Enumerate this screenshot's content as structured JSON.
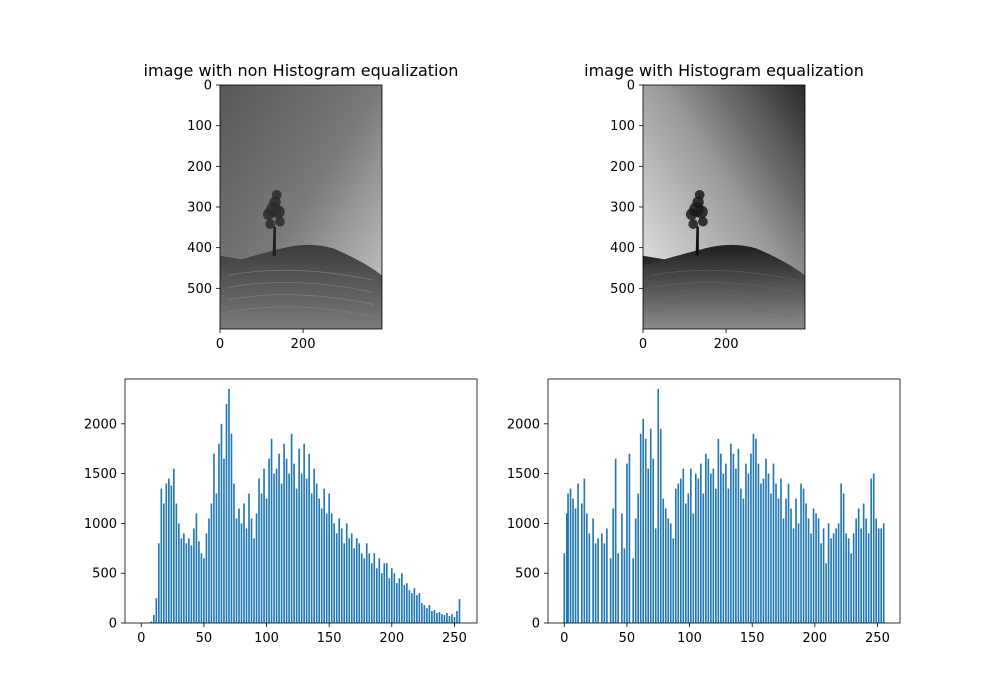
{
  "chart_data": [
    {
      "type": "image",
      "title": "image with non Histogram equalization",
      "image_size": [
        390,
        600
      ],
      "xlim": [
        0,
        390
      ],
      "ylim": [
        600,
        0
      ],
      "xticks": [
        0,
        200
      ],
      "yticks": [
        0,
        100,
        200,
        300,
        400,
        500
      ],
      "content": "grayscale photo of a lone tree on a hill under a gradient sky",
      "tone": "low-contrast"
    },
    {
      "type": "image",
      "title": "image with Histogram equalization",
      "image_size": [
        390,
        600
      ],
      "xlim": [
        0,
        390
      ],
      "ylim": [
        600,
        0
      ],
      "xticks": [
        0,
        200
      ],
      "yticks": [
        0,
        100,
        200,
        300,
        400,
        500
      ],
      "content": "grayscale photo of a lone tree on a hill under a gradient sky",
      "tone": "high-contrast"
    },
    {
      "type": "bar",
      "title": "",
      "xlabel": "",
      "ylabel": "",
      "xlim": [
        -13,
        268
      ],
      "ylim": [
        0,
        2450
      ],
      "xticks": [
        0,
        50,
        100,
        150,
        200,
        250
      ],
      "yticks": [
        0,
        500,
        1000,
        1500,
        2000
      ],
      "color": "#1f77b4",
      "bins": [
        [
          5,
          5
        ],
        [
          8,
          15
        ],
        [
          10,
          80
        ],
        [
          12,
          250
        ],
        [
          14,
          800
        ],
        [
          16,
          1350
        ],
        [
          18,
          1200
        ],
        [
          20,
          1400
        ],
        [
          22,
          1450
        ],
        [
          24,
          1380
        ],
        [
          26,
          1550
        ],
        [
          28,
          1200
        ],
        [
          30,
          1000
        ],
        [
          32,
          850
        ],
        [
          34,
          900
        ],
        [
          36,
          800
        ],
        [
          38,
          850
        ],
        [
          40,
          780
        ],
        [
          42,
          950
        ],
        [
          44,
          1100
        ],
        [
          46,
          820
        ],
        [
          48,
          700
        ],
        [
          50,
          650
        ],
        [
          52,
          900
        ],
        [
          54,
          1050
        ],
        [
          56,
          1200
        ],
        [
          58,
          1700
        ],
        [
          60,
          1300
        ],
        [
          62,
          1800
        ],
        [
          64,
          2000
        ],
        [
          66,
          1650
        ],
        [
          68,
          2200
        ],
        [
          70,
          2350
        ],
        [
          72,
          1900
        ],
        [
          74,
          1400
        ],
        [
          76,
          1050
        ],
        [
          78,
          1150
        ],
        [
          80,
          1000
        ],
        [
          82,
          1200
        ],
        [
          84,
          950
        ],
        [
          86,
          1300
        ],
        [
          88,
          1050
        ],
        [
          90,
          850
        ],
        [
          92,
          1100
        ],
        [
          94,
          1450
        ],
        [
          96,
          1300
        ],
        [
          98,
          1550
        ],
        [
          100,
          1250
        ],
        [
          102,
          1650
        ],
        [
          104,
          1850
        ],
        [
          106,
          1500
        ],
        [
          108,
          1550
        ],
        [
          110,
          1700
        ],
        [
          112,
          1400
        ],
        [
          114,
          1800
        ],
        [
          116,
          1650
        ],
        [
          118,
          1500
        ],
        [
          120,
          1900
        ],
        [
          122,
          1600
        ],
        [
          124,
          1350
        ],
        [
          126,
          1750
        ],
        [
          128,
          1500
        ],
        [
          130,
          1800
        ],
        [
          132,
          1450
        ],
        [
          134,
          1700
        ],
        [
          136,
          1300
        ],
        [
          138,
          1550
        ],
        [
          140,
          1400
        ],
        [
          142,
          1250
        ],
        [
          144,
          1150
        ],
        [
          146,
          1350
        ],
        [
          148,
          1100
        ],
        [
          150,
          1300
        ],
        [
          152,
          1100
        ],
        [
          154,
          1000
        ],
        [
          156,
          900
        ],
        [
          158,
          1050
        ],
        [
          160,
          950
        ],
        [
          162,
          800
        ],
        [
          164,
          1000
        ],
        [
          166,
          850
        ],
        [
          168,
          900
        ],
        [
          170,
          750
        ],
        [
          172,
          850
        ],
        [
          174,
          800
        ],
        [
          176,
          700
        ],
        [
          178,
          650
        ],
        [
          180,
          800
        ],
        [
          182,
          700
        ],
        [
          184,
          600
        ],
        [
          186,
          700
        ],
        [
          188,
          550
        ],
        [
          190,
          650
        ],
        [
          192,
          500
        ],
        [
          194,
          600
        ],
        [
          196,
          600
        ],
        [
          198,
          450
        ],
        [
          200,
          550
        ],
        [
          202,
          500
        ],
        [
          204,
          400
        ],
        [
          206,
          450
        ],
        [
          208,
          500
        ],
        [
          210,
          380
        ],
        [
          212,
          400
        ],
        [
          214,
          330
        ],
        [
          216,
          300
        ],
        [
          218,
          350
        ],
        [
          220,
          280
        ],
        [
          222,
          300
        ],
        [
          224,
          200
        ],
        [
          226,
          180
        ],
        [
          228,
          150
        ],
        [
          230,
          180
        ],
        [
          232,
          120
        ],
        [
          234,
          130
        ],
        [
          236,
          100
        ],
        [
          238,
          110
        ],
        [
          240,
          90
        ],
        [
          242,
          80
        ],
        [
          244,
          100
        ],
        [
          246,
          70
        ],
        [
          248,
          90
        ],
        [
          250,
          60
        ],
        [
          252,
          120
        ],
        [
          254,
          240
        ]
      ]
    },
    {
      "type": "bar",
      "title": "",
      "xlabel": "",
      "ylabel": "",
      "xlim": [
        -13,
        268
      ],
      "ylim": [
        0,
        2450
      ],
      "xticks": [
        0,
        50,
        100,
        150,
        200,
        250
      ],
      "yticks": [
        0,
        500,
        1000,
        1500,
        2000
      ],
      "color": "#1f77b4",
      "bins": [
        [
          0,
          700
        ],
        [
          2,
          1100
        ],
        [
          3,
          1300
        ],
        [
          5,
          1350
        ],
        [
          7,
          1250
        ],
        [
          9,
          1150
        ],
        [
          11,
          1400
        ],
        [
          14,
          1200
        ],
        [
          16,
          1450
        ],
        [
          18,
          1100
        ],
        [
          20,
          900
        ],
        [
          23,
          1050
        ],
        [
          25,
          800
        ],
        [
          27,
          850
        ],
        [
          30,
          900
        ],
        [
          32,
          800
        ],
        [
          34,
          950
        ],
        [
          37,
          650
        ],
        [
          39,
          1150
        ],
        [
          41,
          1650
        ],
        [
          43,
          700
        ],
        [
          46,
          1100
        ],
        [
          48,
          750
        ],
        [
          50,
          1600
        ],
        [
          52,
          1700
        ],
        [
          55,
          650
        ],
        [
          57,
          1050
        ],
        [
          59,
          1300
        ],
        [
          61,
          1900
        ],
        [
          63,
          2050
        ],
        [
          65,
          1850
        ],
        [
          67,
          1550
        ],
        [
          69,
          1950
        ],
        [
          71,
          1650
        ],
        [
          73,
          950
        ],
        [
          75,
          2350
        ],
        [
          77,
          1950
        ],
        [
          79,
          1250
        ],
        [
          81,
          1150
        ],
        [
          83,
          1050
        ],
        [
          85,
          1000
        ],
        [
          87,
          850
        ],
        [
          89,
          1350
        ],
        [
          91,
          1400
        ],
        [
          93,
          1450
        ],
        [
          95,
          1550
        ],
        [
          97,
          1200
        ],
        [
          99,
          1300
        ],
        [
          101,
          1550
        ],
        [
          103,
          1100
        ],
        [
          105,
          1500
        ],
        [
          107,
          1450
        ],
        [
          109,
          1600
        ],
        [
          111,
          1300
        ],
        [
          113,
          1700
        ],
        [
          115,
          1650
        ],
        [
          117,
          1500
        ],
        [
          119,
          1550
        ],
        [
          121,
          1350
        ],
        [
          123,
          1850
        ],
        [
          125,
          1700
        ],
        [
          127,
          1500
        ],
        [
          129,
          1600
        ],
        [
          131,
          1350
        ],
        [
          133,
          1800
        ],
        [
          135,
          1700
        ],
        [
          137,
          1550
        ],
        [
          139,
          1750
        ],
        [
          141,
          1350
        ],
        [
          143,
          1250
        ],
        [
          145,
          1600
        ],
        [
          147,
          1500
        ],
        [
          149,
          1700
        ],
        [
          151,
          1900
        ],
        [
          153,
          1850
        ],
        [
          155,
          1600
        ],
        [
          157,
          1400
        ],
        [
          159,
          1450
        ],
        [
          161,
          1650
        ],
        [
          163,
          1500
        ],
        [
          165,
          1300
        ],
        [
          167,
          1600
        ],
        [
          169,
          1400
        ],
        [
          171,
          1250
        ],
        [
          173,
          1450
        ],
        [
          175,
          1050
        ],
        [
          177,
          1250
        ],
        [
          179,
          1400
        ],
        [
          181,
          1150
        ],
        [
          183,
          950
        ],
        [
          185,
          1250
        ],
        [
          187,
          1000
        ],
        [
          189,
          1400
        ],
        [
          191,
          1350
        ],
        [
          193,
          1200
        ],
        [
          195,
          1050
        ],
        [
          197,
          900
        ],
        [
          199,
          1150
        ],
        [
          201,
          1100
        ],
        [
          203,
          1050
        ],
        [
          205,
          800
        ],
        [
          207,
          950
        ],
        [
          209,
          600
        ],
        [
          211,
          1000
        ],
        [
          213,
          850
        ],
        [
          215,
          900
        ],
        [
          217,
          950
        ],
        [
          219,
          1000
        ],
        [
          221,
          1400
        ],
        [
          223,
          1300
        ],
        [
          225,
          900
        ],
        [
          227,
          850
        ],
        [
          229,
          700
        ],
        [
          231,
          900
        ],
        [
          233,
          1050
        ],
        [
          235,
          1150
        ],
        [
          237,
          950
        ],
        [
          239,
          1200
        ],
        [
          241,
          1050
        ],
        [
          243,
          900
        ],
        [
          245,
          1450
        ],
        [
          247,
          1500
        ],
        [
          249,
          1050
        ],
        [
          251,
          950
        ],
        [
          253,
          950
        ],
        [
          255,
          1000
        ]
      ]
    }
  ]
}
